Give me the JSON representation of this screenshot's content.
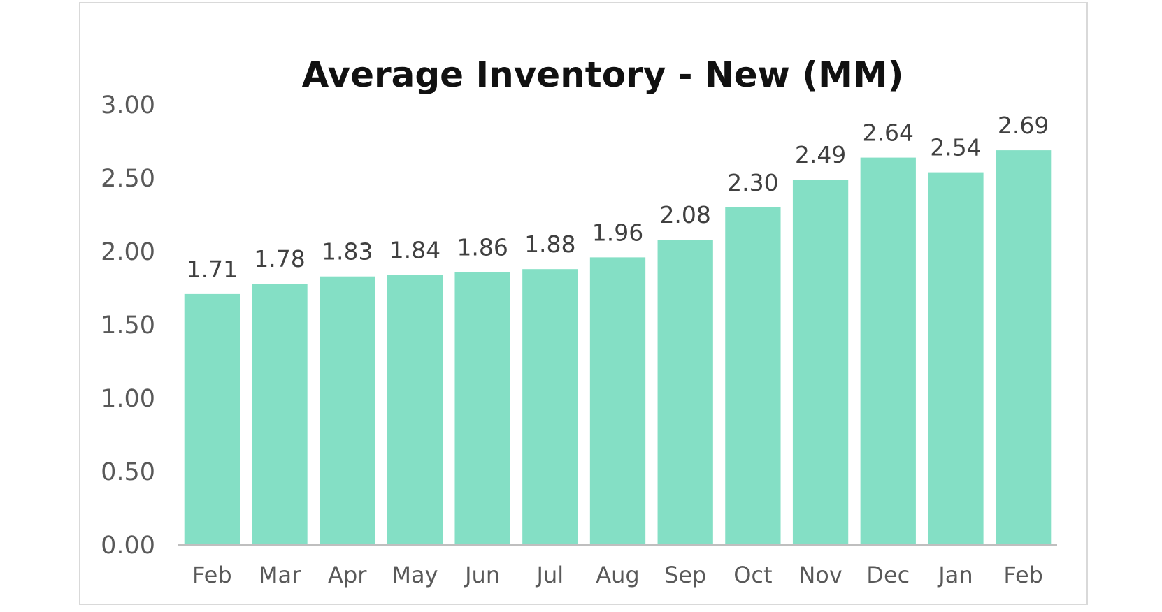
{
  "chart_data": {
    "type": "bar",
    "title": "Average Inventory - New (MM)",
    "xlabel": "",
    "ylabel": "",
    "categories": [
      "Feb",
      "Mar",
      "Apr",
      "May",
      "Jun",
      "Jul",
      "Aug",
      "Sep",
      "Oct",
      "Nov",
      "Dec",
      "Jan",
      "Feb"
    ],
    "values": [
      1.71,
      1.78,
      1.83,
      1.84,
      1.86,
      1.88,
      1.96,
      2.08,
      2.3,
      2.49,
      2.64,
      2.54,
      2.69
    ],
    "data_labels": [
      "1.71",
      "1.78",
      "1.83",
      "1.84",
      "1.86",
      "1.88",
      "1.96",
      "2.08",
      "2.30",
      "2.49",
      "2.64",
      "2.54",
      "2.69"
    ],
    "y_ticks": [
      "0.00",
      "0.50",
      "1.00",
      "1.50",
      "2.00",
      "2.50",
      "3.00"
    ],
    "ylim": [
      0,
      3
    ],
    "grid": false,
    "legend": "none",
    "colors": {
      "bar": "#84dfc5",
      "axis": "#bfbfbf",
      "border": "#d9d9d9"
    }
  }
}
